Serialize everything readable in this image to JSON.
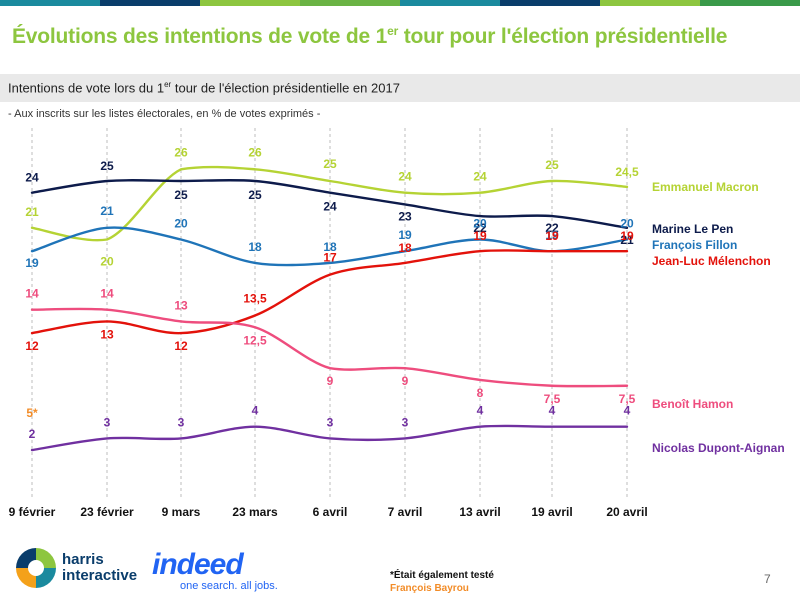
{
  "header": {
    "title_pre": "Évolutions des intentions de vote de 1",
    "title_sup": "er",
    "title_post": " tour pour l'élection présidentielle",
    "subtitle_pre": "Intentions de vote lors du 1",
    "subtitle_sup": "er",
    "subtitle_post": " tour de l'élection présidentielle en 2017",
    "note": "- Aux inscrits sur les listes électorales, en % de votes exprimés -",
    "stripe_colors": [
      "#1a8a9e",
      "#0a3d6b",
      "#8dc63f",
      "#6ab344",
      "#1a8a9e",
      "#0a3d6b",
      "#8dc63f",
      "#3a9a4a"
    ]
  },
  "chart_data": {
    "type": "line",
    "x": [
      "9 février",
      "23 février",
      "9 mars",
      "23 mars",
      "6 avril",
      "7 avril",
      "13 avril",
      "19 avril",
      "20 avril"
    ],
    "series": [
      {
        "name": "Emmanuel Macron",
        "color": "#b5d334",
        "values": [
          21,
          20,
          26,
          26,
          25,
          24,
          24,
          25,
          24.5
        ],
        "labels": [
          "21",
          "20",
          "26",
          "26",
          "25",
          "24",
          "24",
          "25",
          "24,5"
        ]
      },
      {
        "name": "Marine Le Pen",
        "color": "#0d1b4b",
        "values": [
          24,
          25,
          25,
          25,
          24,
          23,
          22,
          22,
          21
        ],
        "labels": [
          "24",
          "25",
          "25",
          "25",
          "24",
          "23",
          "22",
          "22",
          "21"
        ]
      },
      {
        "name": "François Fillon",
        "color": "#1f74b8",
        "values": [
          19,
          21,
          20,
          18,
          18,
          19,
          20,
          19,
          20
        ],
        "labels": [
          "19",
          "21",
          "20",
          "18",
          "18",
          "19",
          "20",
          "19",
          "20"
        ]
      },
      {
        "name": "Jean-Luc Mélenchon",
        "color": "#e3120b",
        "values": [
          12,
          13,
          12,
          13.5,
          17,
          18,
          19,
          19,
          19
        ],
        "labels": [
          "12",
          "13",
          "12",
          "13,5",
          "17",
          "18",
          "19",
          "19",
          "19"
        ]
      },
      {
        "name": "Benoît Hamon",
        "color": "#ee4d7e",
        "values": [
          14,
          14,
          13,
          12.5,
          9,
          9,
          8,
          7.5,
          7.5
        ],
        "labels": [
          "14",
          "14",
          "13",
          "12,5",
          "9",
          "9",
          "8",
          "7,5",
          "7,5"
        ]
      },
      {
        "name": "Nicolas Dupont-Aignan",
        "color": "#7030a0",
        "values": [
          2,
          3,
          3,
          4,
          3,
          3,
          4,
          4,
          4
        ],
        "labels": [
          "2",
          "3",
          "3",
          "4",
          "3",
          "3",
          "4",
          "4",
          "4"
        ]
      }
    ],
    "extra_points": [
      {
        "series": "François Bayrou",
        "x": "9 février",
        "value": 5,
        "label": "5*",
        "color": "#f28c28"
      }
    ],
    "legend_placement": "right",
    "grid": "vertical dashed"
  },
  "footer": {
    "harris_line1": "harris",
    "harris_line2": "interactive",
    "indeed_word": "indeed",
    "indeed_tagline": "one search. all jobs.",
    "footnote_line1": "*Était également testé",
    "footnote_line2": "François Bayrou",
    "page_number": "7"
  }
}
